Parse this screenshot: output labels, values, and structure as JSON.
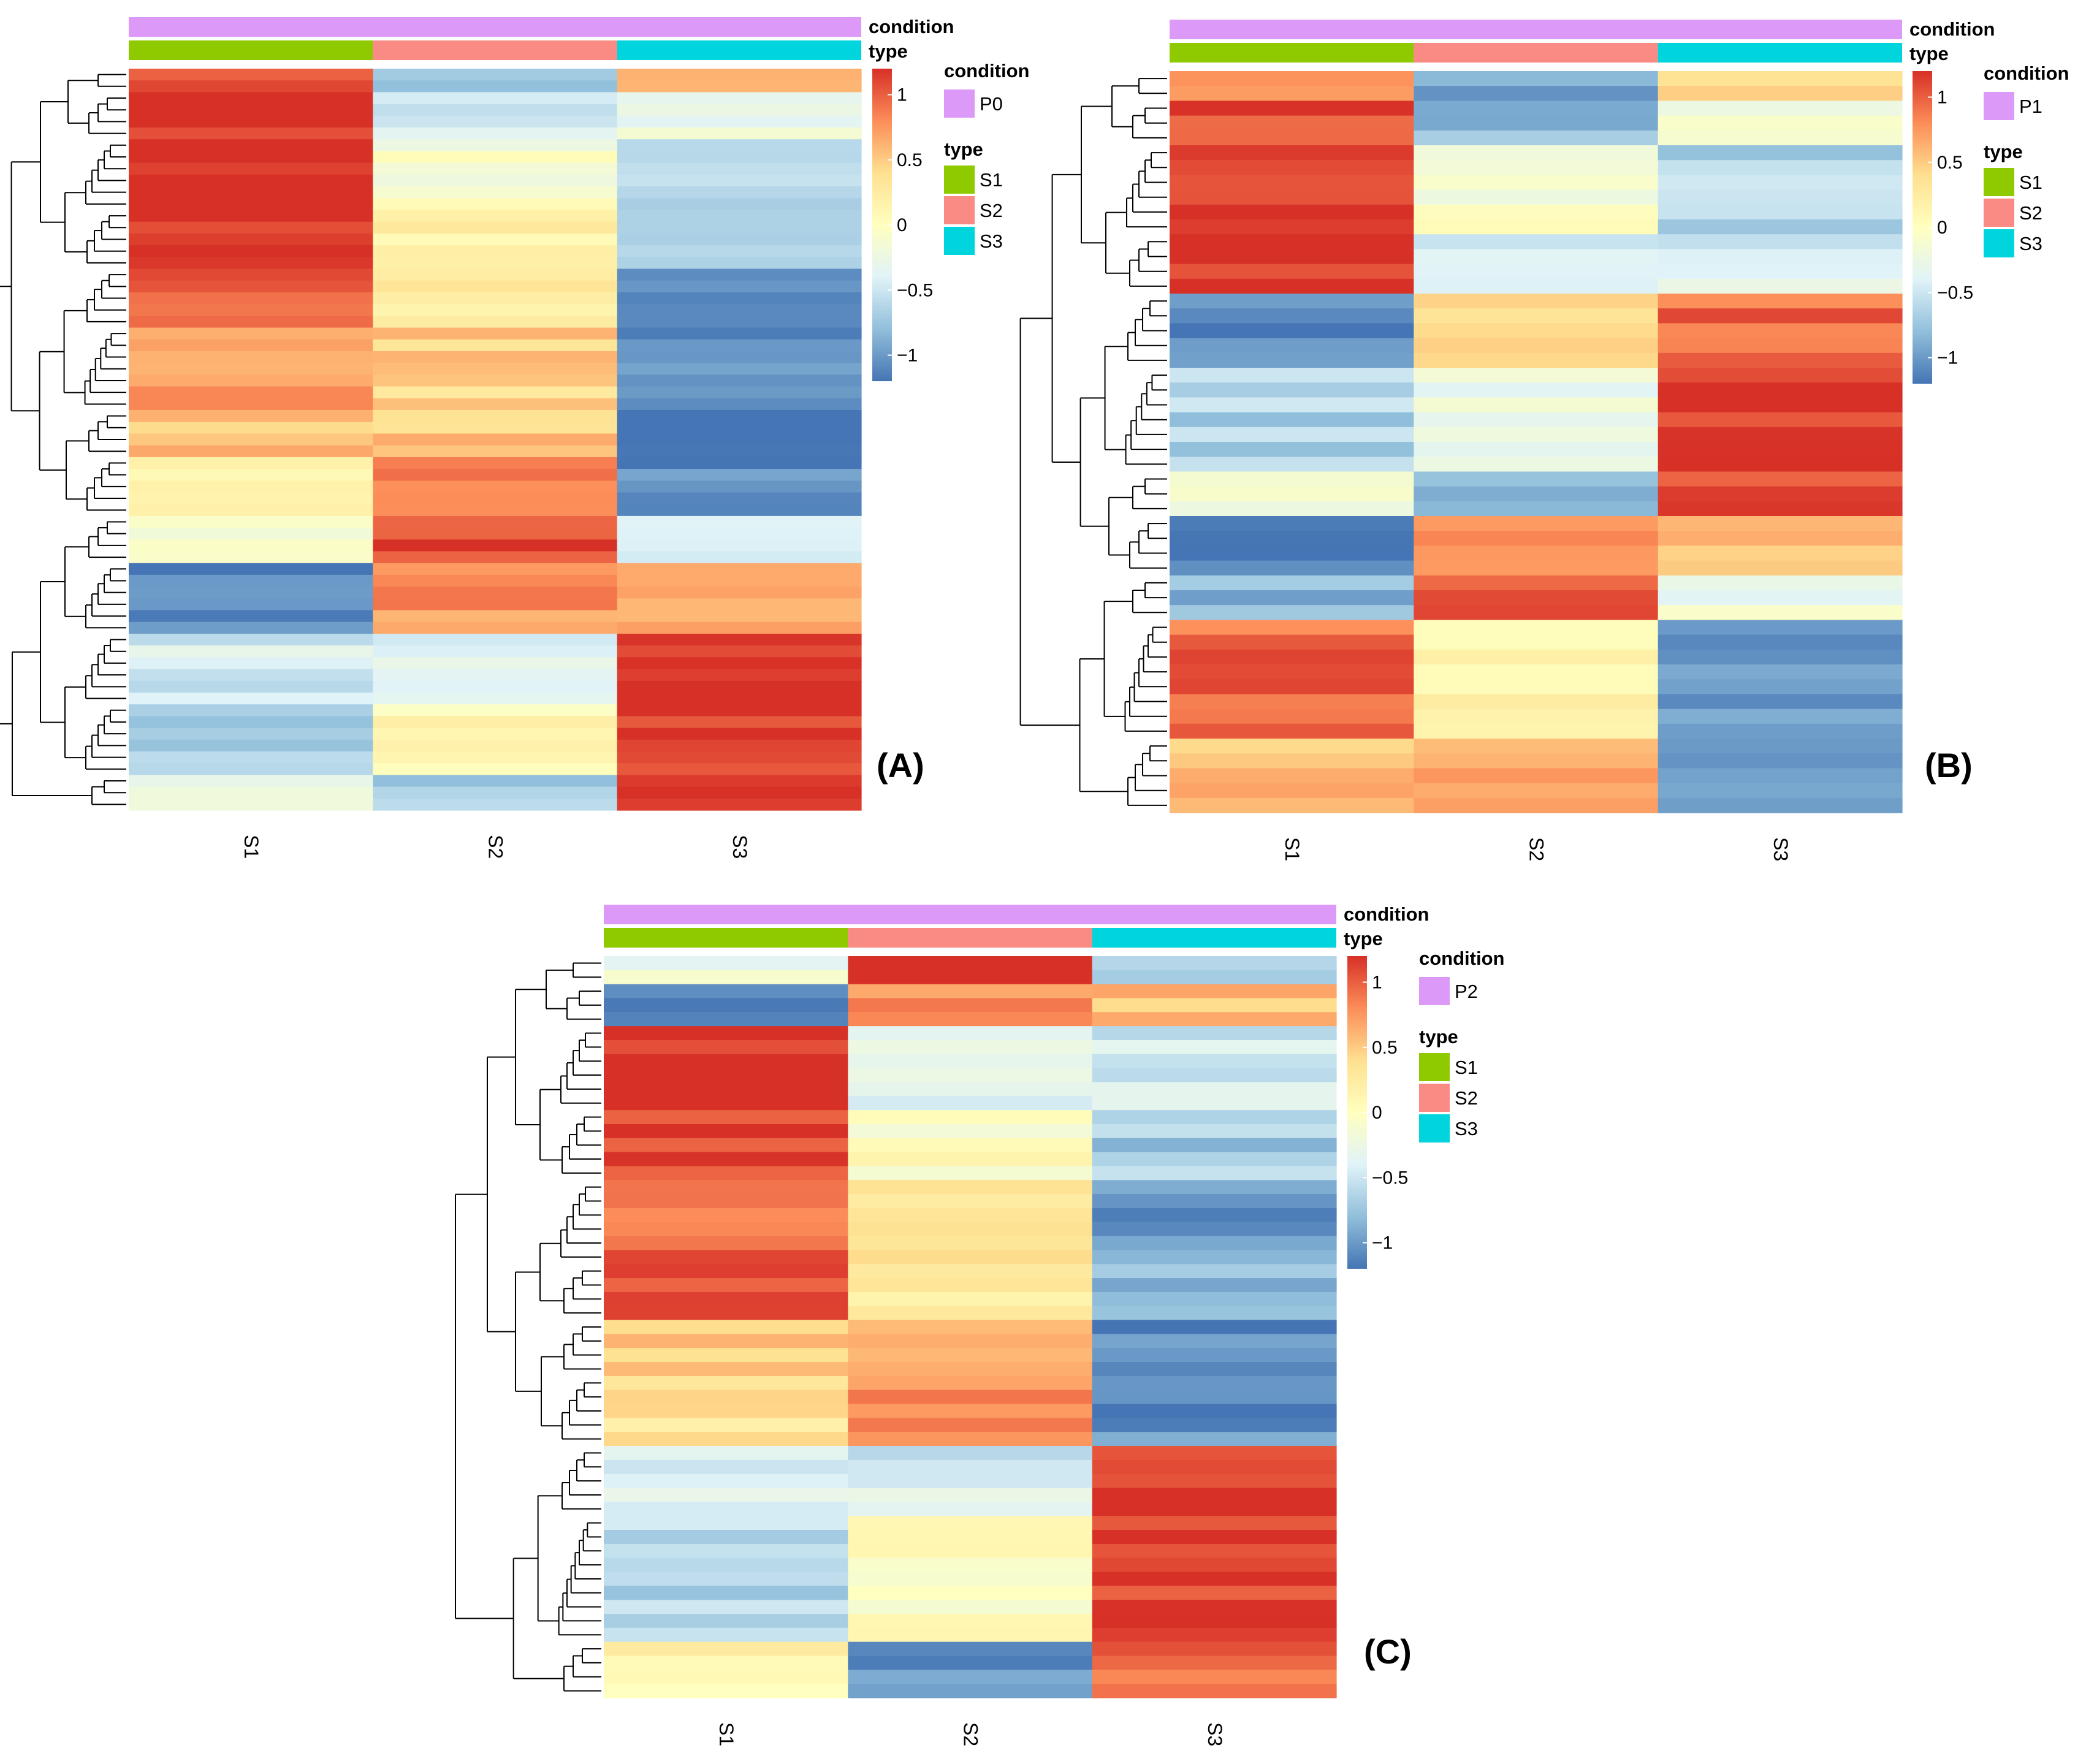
{
  "figure_title": "",
  "palette": {
    "condition": "#DD99F7",
    "type_S1": "#8FCA00",
    "type_S2": "#F98A84",
    "type_S3": "#00D4DD",
    "scale": [
      "#4575B4",
      "#91BFDB",
      "#E0F3F8",
      "#FFFFBF",
      "#FEE090",
      "#FC8D59",
      "#D73027"
    ]
  },
  "chart_data": [
    {
      "type": "heatmap",
      "panel_label": "(A)",
      "columns": [
        "S1",
        "S2",
        "S3"
      ],
      "annotation": {
        "rows": [
          "condition",
          "type"
        ],
        "legend": {
          "condition": {
            "title": "condition",
            "levels": [
              "P0"
            ]
          },
          "type": {
            "title": "type",
            "levels": [
              "S1",
              "S2",
              "S3"
            ]
          }
        }
      },
      "colorbar": {
        "ticks": [
          "1",
          "0.5",
          "0",
          "−0.5",
          "−1"
        ],
        "range": [
          -1.2,
          1.2
        ]
      },
      "clusters": [
        {
          "rows": 2,
          "values": [
            1.1,
            -0.8,
            0.6
          ]
        },
        {
          "rows": 4,
          "values": [
            1.2,
            -0.4,
            -0.3
          ]
        },
        {
          "rows": 6,
          "values": [
            1.2,
            -0.1,
            -0.6
          ]
        },
        {
          "rows": 5,
          "values": [
            1.15,
            0.15,
            -0.7
          ]
        },
        {
          "rows": 5,
          "values": [
            0.95,
            0.3,
            -0.95
          ]
        },
        {
          "rows": 7,
          "values": [
            0.75,
            0.45,
            -1.1
          ]
        },
        {
          "rows": 4,
          "values": [
            0.55,
            0.5,
            -1.15
          ]
        },
        {
          "rows": 5,
          "values": [
            0.15,
            0.9,
            -1.1
          ]
        },
        {
          "rows": 4,
          "values": [
            -0.1,
            1.05,
            -0.4
          ]
        },
        {
          "rows": 6,
          "values": [
            -1.15,
            0.75,
            0.65
          ]
        },
        {
          "rows": 6,
          "values": [
            -0.45,
            -0.35,
            1.2
          ]
        },
        {
          "rows": 6,
          "values": [
            -0.75,
            0.1,
            1.15
          ]
        },
        {
          "rows": 3,
          "values": [
            -0.15,
            -0.75,
            1.1
          ]
        }
      ]
    },
    {
      "type": "heatmap",
      "panel_label": "(B)",
      "columns": [
        "S1",
        "S2",
        "S3"
      ],
      "annotation": {
        "rows": [
          "condition",
          "type"
        ],
        "legend": {
          "condition": {
            "title": "condition",
            "levels": [
              "P1"
            ]
          },
          "type": {
            "title": "type",
            "levels": [
              "S1",
              "S2",
              "S3"
            ]
          }
        }
      },
      "colorbar": {
        "ticks": [
          "1",
          "0.5",
          "0",
          "−0.5",
          "−1"
        ],
        "range": [
          -1.2,
          1.2
        ]
      },
      "clusters": [
        {
          "rows": 2,
          "values": [
            0.85,
            -1.0,
            0.5
          ]
        },
        {
          "rows": 3,
          "values": [
            1.1,
            -0.75,
            -0.1
          ]
        },
        {
          "rows": 6,
          "values": [
            1.2,
            -0.1,
            -0.65
          ]
        },
        {
          "rows": 4,
          "values": [
            1.2,
            -0.4,
            -0.4
          ]
        },
        {
          "rows": 5,
          "values": [
            -1.05,
            0.35,
            0.95
          ]
        },
        {
          "rows": 7,
          "values": [
            -0.65,
            -0.25,
            1.15
          ]
        },
        {
          "rows": 3,
          "values": [
            -0.2,
            -0.75,
            1.05
          ]
        },
        {
          "rows": 4,
          "values": [
            -1.1,
            0.75,
            0.55
          ]
        },
        {
          "rows": 3,
          "values": [
            -0.85,
            1.1,
            -0.2
          ]
        },
        {
          "rows": 8,
          "values": [
            0.95,
            0.15,
            -0.95
          ]
        },
        {
          "rows": 5,
          "values": [
            0.55,
            0.7,
            -1.1
          ]
        }
      ]
    },
    {
      "type": "heatmap",
      "panel_label": "(C)",
      "columns": [
        "S1",
        "S2",
        "S3"
      ],
      "annotation": {
        "rows": [
          "condition",
          "type"
        ],
        "legend": {
          "condition": {
            "title": "condition",
            "levels": [
              "P2"
            ]
          },
          "type": {
            "title": "type",
            "levels": [
              "S1",
              "S2",
              "S3"
            ]
          }
        }
      },
      "colorbar": {
        "ticks": [
          "1",
          "0.5",
          "0",
          "−0.5",
          "−1"
        ],
        "range": [
          -1.2,
          1.2
        ]
      },
      "clusters": [
        {
          "rows": 2,
          "values": [
            -0.2,
            1.2,
            -0.55
          ]
        },
        {
          "rows": 3,
          "values": [
            -1.05,
            0.75,
            0.55
          ]
        },
        {
          "rows": 6,
          "values": [
            1.2,
            -0.35,
            -0.45
          ]
        },
        {
          "rows": 5,
          "values": [
            1.15,
            0.0,
            -0.7
          ]
        },
        {
          "rows": 6,
          "values": [
            0.95,
            0.3,
            -1.0
          ]
        },
        {
          "rows": 4,
          "values": [
            1.0,
            0.2,
            -0.85
          ]
        },
        {
          "rows": 4,
          "values": [
            0.55,
            0.55,
            -1.1
          ]
        },
        {
          "rows": 5,
          "values": [
            0.35,
            0.85,
            -1.05
          ]
        },
        {
          "rows": 5,
          "values": [
            -0.45,
            -0.45,
            1.2
          ]
        },
        {
          "rows": 9,
          "values": [
            -0.6,
            0.0,
            1.15
          ]
        },
        {
          "rows": 4,
          "values": [
            0.15,
            -1.05,
            0.95
          ]
        }
      ]
    }
  ]
}
